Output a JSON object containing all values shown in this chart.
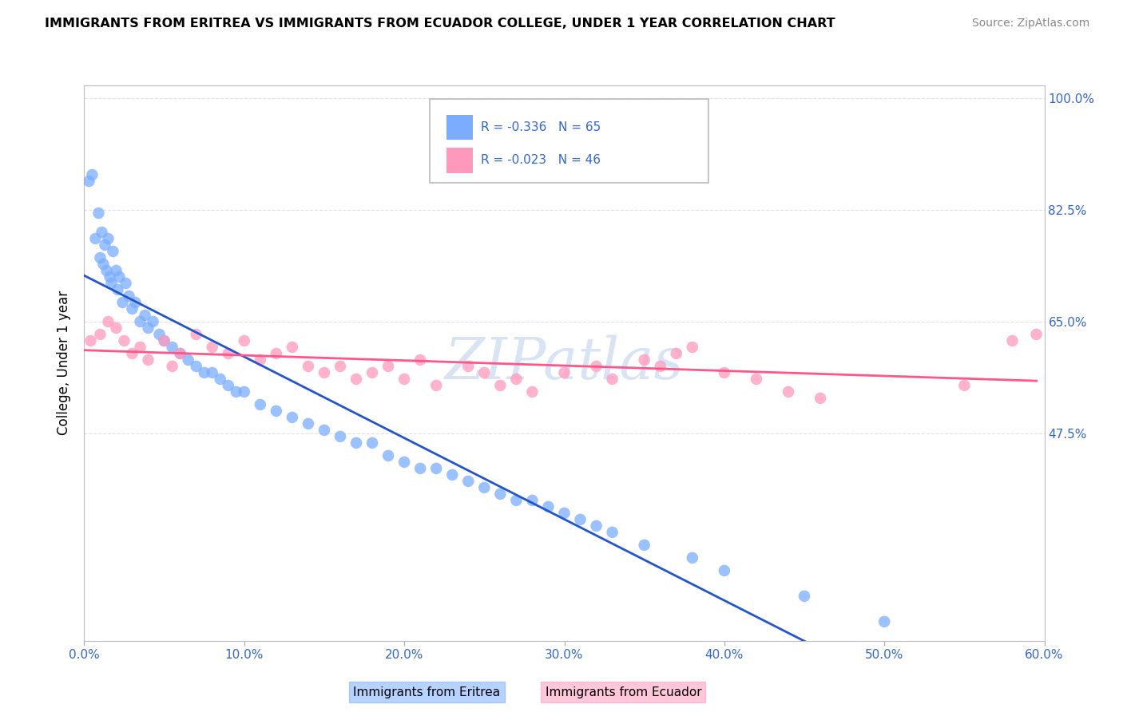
{
  "title": "IMMIGRANTS FROM ERITREA VS IMMIGRANTS FROM ECUADOR COLLEGE, UNDER 1 YEAR CORRELATION CHART",
  "source": "Source: ZipAtlas.com",
  "ylabel": "College, Under 1 year",
  "legend_eritrea": "R = -0.336   N = 65",
  "legend_ecuador": "R = -0.023   N = 46",
  "legend_label_eritrea": "Immigrants from Eritrea",
  "legend_label_ecuador": "Immigrants from Ecuador",
  "eritrea_color": "#7aadff",
  "ecuador_color": "#ff99bb",
  "eritrea_line_color": "#2255cc",
  "ecuador_line_color": "#ff5588",
  "eritrea_scatter_x": [
    0.3,
    0.5,
    0.7,
    0.9,
    1.0,
    1.1,
    1.2,
    1.3,
    1.4,
    1.5,
    1.6,
    1.7,
    1.8,
    2.0,
    2.1,
    2.2,
    2.4,
    2.6,
    2.8,
    3.0,
    3.2,
    3.5,
    3.8,
    4.0,
    4.3,
    4.7,
    5.0,
    5.5,
    6.0,
    6.5,
    7.0,
    7.5,
    8.0,
    8.5,
    9.0,
    9.5,
    10.0,
    11.0,
    12.0,
    13.0,
    14.0,
    15.0,
    16.0,
    17.0,
    18.0,
    19.0,
    20.0,
    21.0,
    22.0,
    23.0,
    24.0,
    25.0,
    26.0,
    27.0,
    28.0,
    29.0,
    30.0,
    31.0,
    32.0,
    33.0,
    35.0,
    38.0,
    40.0,
    45.0,
    50.0
  ],
  "eritrea_scatter_y": [
    87.0,
    88.0,
    78.0,
    82.0,
    75.0,
    79.0,
    74.0,
    77.0,
    73.0,
    78.0,
    72.0,
    71.0,
    76.0,
    73.0,
    70.0,
    72.0,
    68.0,
    71.0,
    69.0,
    67.0,
    68.0,
    65.0,
    66.0,
    64.0,
    65.0,
    63.0,
    62.0,
    61.0,
    60.0,
    59.0,
    58.0,
    57.0,
    57.0,
    56.0,
    55.0,
    54.0,
    54.0,
    52.0,
    51.0,
    50.0,
    49.0,
    48.0,
    47.0,
    46.0,
    46.0,
    44.0,
    43.0,
    42.0,
    42.0,
    41.0,
    40.0,
    39.0,
    38.0,
    37.0,
    37.0,
    36.0,
    35.0,
    34.0,
    33.0,
    32.0,
    30.0,
    28.0,
    26.0,
    22.0,
    18.0
  ],
  "ecuador_scatter_x": [
    0.4,
    1.0,
    1.5,
    2.0,
    2.5,
    3.0,
    3.5,
    4.0,
    5.0,
    5.5,
    6.0,
    7.0,
    8.0,
    9.0,
    10.0,
    11.0,
    12.0,
    13.0,
    14.0,
    15.0,
    16.0,
    17.0,
    18.0,
    19.0,
    20.0,
    21.0,
    22.0,
    24.0,
    25.0,
    26.0,
    27.0,
    28.0,
    30.0,
    32.0,
    33.0,
    35.0,
    36.0,
    37.0,
    38.0,
    40.0,
    42.0,
    44.0,
    46.0,
    55.0,
    58.0,
    59.5
  ],
  "ecuador_scatter_y": [
    62.0,
    63.0,
    65.0,
    64.0,
    62.0,
    60.0,
    61.0,
    59.0,
    62.0,
    58.0,
    60.0,
    63.0,
    61.0,
    60.0,
    62.0,
    59.0,
    60.0,
    61.0,
    58.0,
    57.0,
    58.0,
    56.0,
    57.0,
    58.0,
    56.0,
    59.0,
    55.0,
    58.0,
    57.0,
    55.0,
    56.0,
    54.0,
    57.0,
    58.0,
    56.0,
    59.0,
    58.0,
    60.0,
    61.0,
    57.0,
    56.0,
    54.0,
    53.0,
    55.0,
    62.0,
    63.0
  ],
  "xmin": 0.0,
  "xmax": 60.0,
  "ymin": 15.0,
  "ymax": 102.0,
  "yticks": [
    47.5,
    65.0,
    82.5,
    100.0
  ],
  "xtick_vals": [
    0,
    10,
    20,
    30,
    40,
    50,
    60
  ],
  "background_color": "#ffffff",
  "grid_color": "#e0e0e0"
}
